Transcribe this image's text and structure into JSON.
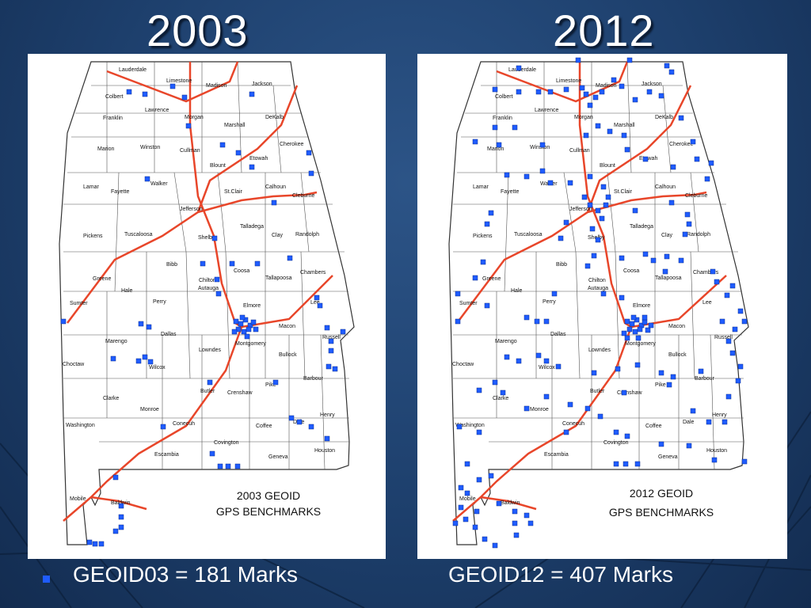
{
  "slide": {
    "year_left": "2003",
    "year_right": "2012",
    "caption_left": "GEOID03 = 181 Marks",
    "caption_right": "GEOID12 = 407 Marks",
    "bullet_icon": "square-bullet-icon",
    "bullet_color": "#1f5cff"
  },
  "maps": [
    {
      "id": "left",
      "title_line1": "2003 GEOID",
      "title_line2": "GPS BENCHMARKS",
      "marker_color": "#1f5cff",
      "highway_color": "#e8462a",
      "mark_count": 181
    },
    {
      "id": "right",
      "title_line1": "2012 GEOID",
      "title_line2": "GPS BENCHMARKS",
      "marker_color": "#1f5cff",
      "highway_color": "#e8462a",
      "mark_count": 407
    }
  ],
  "counties": [
    "Lauderdale",
    "Limestone",
    "Madison",
    "Jackson",
    "Colbert",
    "Lawrence",
    "Morgan",
    "Marshall",
    "DeKalb",
    "Franklin",
    "Cherokee",
    "Marion",
    "Winston",
    "Cullman",
    "Etowah",
    "Blount",
    "Lamar",
    "Fayette",
    "Walker",
    "St.Clair",
    "Calhoun",
    "Cleburne",
    "Jefferson",
    "Pickens",
    "Tuscaloosa",
    "Shelby",
    "Talladega",
    "Clay",
    "Randolph",
    "Bibb",
    "Coosa",
    "Tallapoosa",
    "Chambers",
    "Greene",
    "Chilton",
    "Sumter",
    "Hale",
    "Perry",
    "Autauga",
    "Elmore",
    "Lee",
    "Marengo",
    "Dallas",
    "Macon",
    "Russell",
    "Lowndes",
    "Montgomery",
    "Choctaw",
    "Wilcox",
    "Bullock",
    "Barbour",
    "Clarke",
    "Butler",
    "Crenshaw",
    "Pike",
    "Henry",
    "Washington",
    "Monroe",
    "Conecuh",
    "Dale",
    "Coffee",
    "Covington",
    "Escambia",
    "Geneva",
    "Houston",
    "Mobile",
    "Baldwin"
  ]
}
